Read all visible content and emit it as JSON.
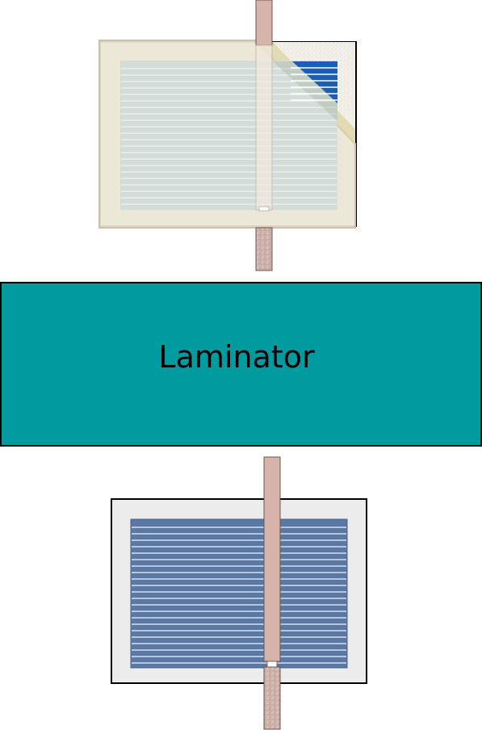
{
  "laminator": {
    "label": "Laminator",
    "color": "#009b9f"
  },
  "colors": {
    "sheet_cream": "#ece7d6",
    "cell_grey": "#d4dcd9",
    "cell_line_grey": "#eef2f0",
    "cell_blue": "#5a78a6",
    "cell_line_white": "#f2f5fa",
    "backsheet_grey": "#ececec",
    "ribbon_pink": "#d6b4ab",
    "ribbon_speckle": "#cfaea6",
    "exposed_blue": "#1a5fb5",
    "fold_gold": "#ddd3a0"
  }
}
